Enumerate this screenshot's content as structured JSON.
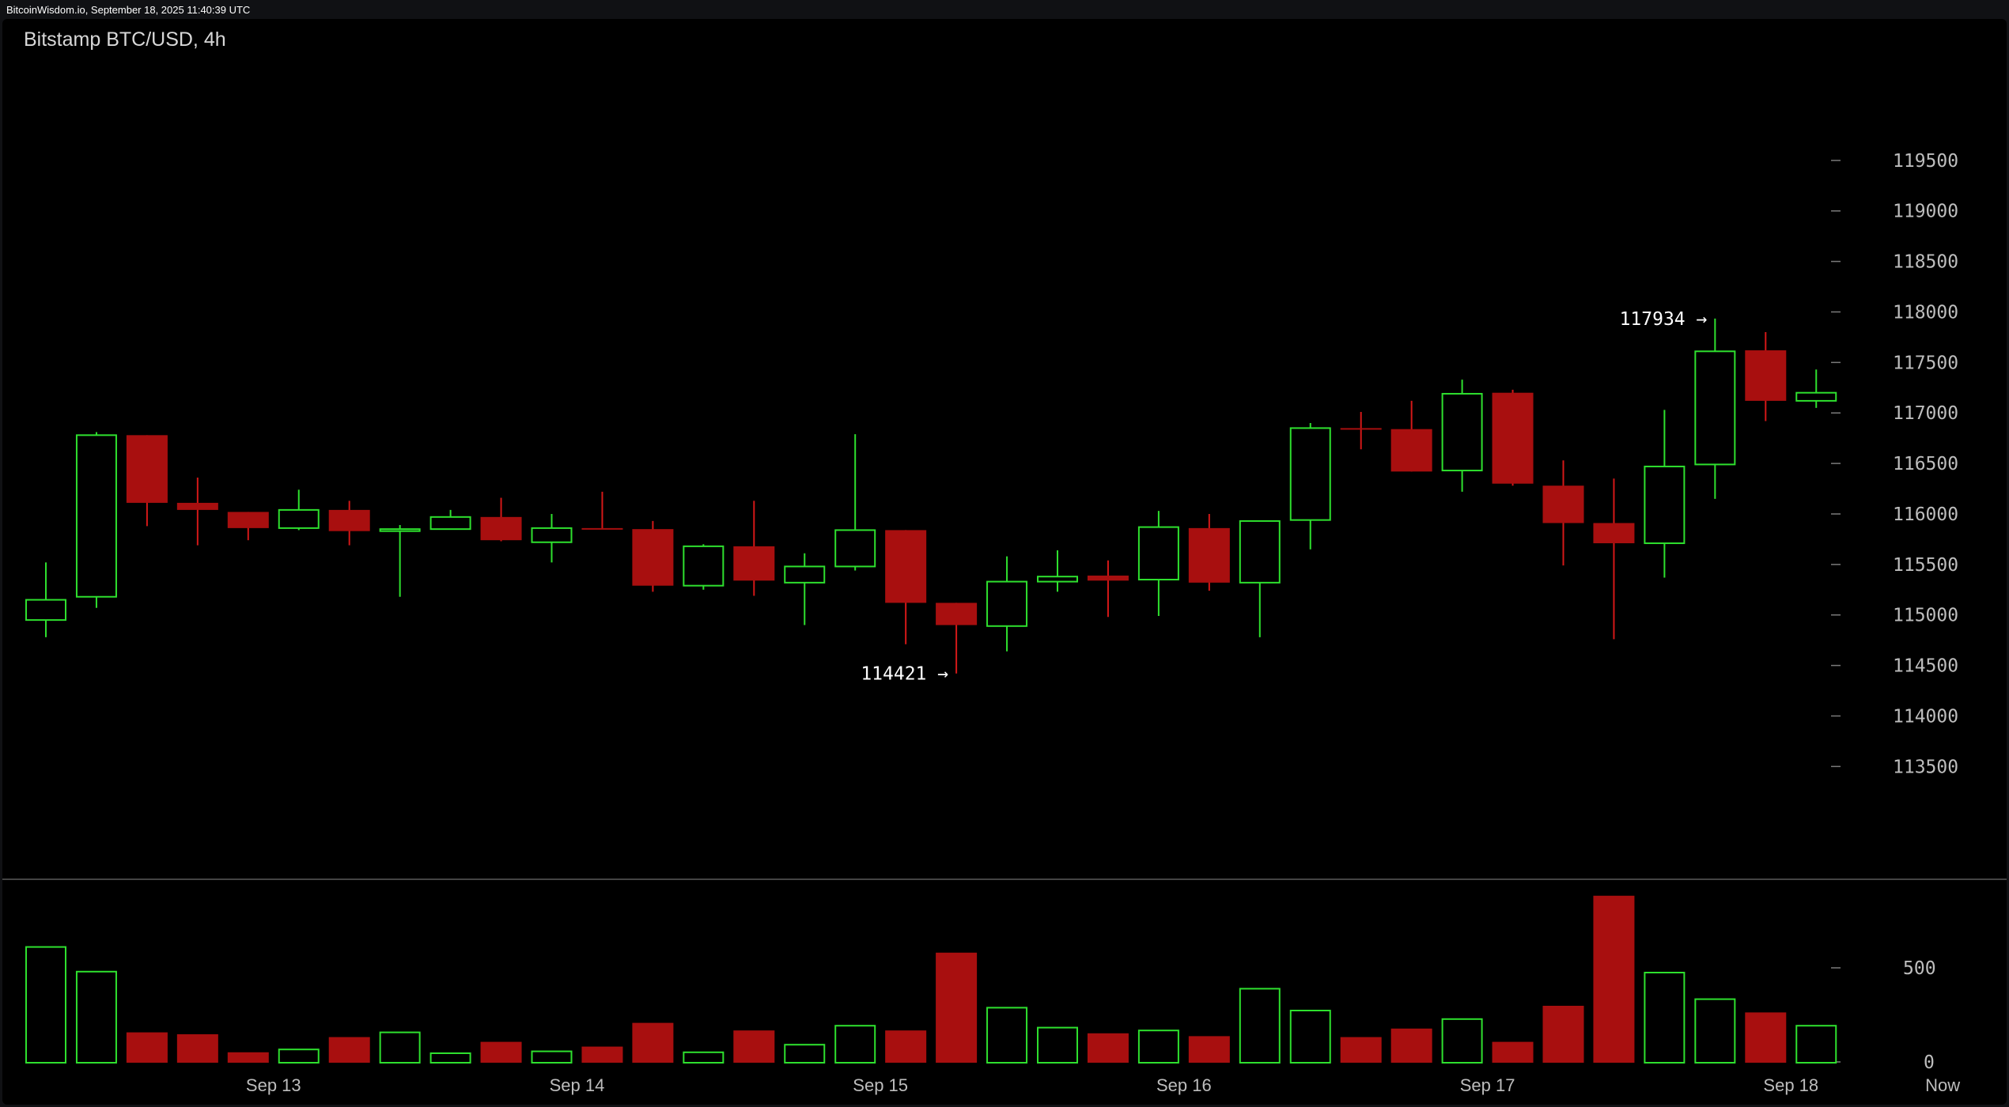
{
  "header": {
    "text": "BitcoinWisdom.io, September 18, 2025 11:40:39 UTC"
  },
  "chart_title": "Bitstamp BTC/USD, 4h",
  "colors": {
    "up": "#2ee02e",
    "down": "#a80f0f",
    "down_wick": "#d41818",
    "axis_text": "#bdbdbd",
    "bg": "#000000"
  },
  "chart_data": {
    "type": "candlestick",
    "title": "Bitstamp BTC/USD, 4h",
    "interval": "4h",
    "price_axis": {
      "ticks": [
        113500,
        114000,
        114500,
        115000,
        115500,
        116000,
        116500,
        117000,
        117500,
        118000,
        118500,
        119000,
        119500
      ],
      "range": [
        112900,
        120000
      ]
    },
    "volume_axis": {
      "ticks": [
        0,
        500
      ],
      "range": [
        0,
        900
      ]
    },
    "x_tick_labels": [
      {
        "label": "Sep 13",
        "index": 4.5
      },
      {
        "label": "Sep 14",
        "index": 10.5
      },
      {
        "label": "Sep 15",
        "index": 16.5
      },
      {
        "label": "Sep 16",
        "index": 22.5
      },
      {
        "label": "Sep 17",
        "index": 28.5
      },
      {
        "label": "Sep 18",
        "index": 34.5
      },
      {
        "label": "Now",
        "index": 37.5
      }
    ],
    "annotations": [
      {
        "text": "117934 →",
        "index": 33,
        "price": 117934,
        "kind": "high"
      },
      {
        "text": "114421 →",
        "index": 18,
        "price": 114421,
        "kind": "low"
      }
    ],
    "candles": [
      {
        "o": 114950,
        "h": 115520,
        "l": 114780,
        "c": 115150,
        "v": 610
      },
      {
        "o": 115180,
        "h": 116810,
        "l": 115070,
        "c": 116780,
        "v": 480
      },
      {
        "o": 116780,
        "h": 116780,
        "l": 115880,
        "c": 116110,
        "v": 160
      },
      {
        "o": 116110,
        "h": 116360,
        "l": 115690,
        "c": 116040,
        "v": 150
      },
      {
        "o": 116020,
        "h": 116020,
        "l": 115740,
        "c": 115860,
        "v": 55
      },
      {
        "o": 115860,
        "h": 116240,
        "l": 115840,
        "c": 116040,
        "v": 70
      },
      {
        "o": 116040,
        "h": 116130,
        "l": 115690,
        "c": 115830,
        "v": 135
      },
      {
        "o": 115830,
        "h": 115890,
        "l": 115180,
        "c": 115850,
        "v": 160
      },
      {
        "o": 115850,
        "h": 116040,
        "l": 115850,
        "c": 115970,
        "v": 50
      },
      {
        "o": 115970,
        "h": 116160,
        "l": 115730,
        "c": 115740,
        "v": 110
      },
      {
        "o": 115720,
        "h": 116000,
        "l": 115520,
        "c": 115860,
        "v": 60
      },
      {
        "o": 115860,
        "h": 116220,
        "l": 115850,
        "c": 115850,
        "v": 85
      },
      {
        "o": 115850,
        "h": 115930,
        "l": 115230,
        "c": 115290,
        "v": 210
      },
      {
        "o": 115290,
        "h": 115700,
        "l": 115250,
        "c": 115680,
        "v": 55
      },
      {
        "o": 115680,
        "h": 116130,
        "l": 115190,
        "c": 115340,
        "v": 170
      },
      {
        "o": 115320,
        "h": 115610,
        "l": 114900,
        "c": 115480,
        "v": 95
      },
      {
        "o": 115480,
        "h": 116790,
        "l": 115440,
        "c": 115840,
        "v": 195
      },
      {
        "o": 115840,
        "h": 115840,
        "l": 114710,
        "c": 115120,
        "v": 170
      },
      {
        "o": 115120,
        "h": 115120,
        "l": 114421,
        "c": 114900,
        "v": 580
      },
      {
        "o": 114890,
        "h": 115580,
        "l": 114640,
        "c": 115330,
        "v": 290
      },
      {
        "o": 115330,
        "h": 115640,
        "l": 115230,
        "c": 115380,
        "v": 185
      },
      {
        "o": 115390,
        "h": 115540,
        "l": 114980,
        "c": 115340,
        "v": 155
      },
      {
        "o": 115350,
        "h": 116030,
        "l": 114990,
        "c": 115870,
        "v": 170
      },
      {
        "o": 115860,
        "h": 116000,
        "l": 115240,
        "c": 115320,
        "v": 140
      },
      {
        "o": 115320,
        "h": 115930,
        "l": 114780,
        "c": 115930,
        "v": 390
      },
      {
        "o": 115940,
        "h": 116900,
        "l": 115650,
        "c": 116850,
        "v": 275
      },
      {
        "o": 116850,
        "h": 117010,
        "l": 116640,
        "c": 116840,
        "v": 135
      },
      {
        "o": 116840,
        "h": 117120,
        "l": 116420,
        "c": 116420,
        "v": 180
      },
      {
        "o": 116430,
        "h": 117330,
        "l": 116220,
        "c": 117190,
        "v": 230
      },
      {
        "o": 117200,
        "h": 117230,
        "l": 116280,
        "c": 116300,
        "v": 110
      },
      {
        "o": 116280,
        "h": 116530,
        "l": 115490,
        "c": 115910,
        "v": 300
      },
      {
        "o": 115910,
        "h": 116350,
        "l": 114760,
        "c": 115710,
        "v": 880
      },
      {
        "o": 115710,
        "h": 117030,
        "l": 115370,
        "c": 116470,
        "v": 475
      },
      {
        "o": 116490,
        "h": 117934,
        "l": 116150,
        "c": 117610,
        "v": 335
      },
      {
        "o": 117620,
        "h": 117800,
        "l": 116920,
        "c": 117120,
        "v": 265
      },
      {
        "o": 117120,
        "h": 117430,
        "l": 117050,
        "c": 117200,
        "v": 195
      }
    ]
  }
}
